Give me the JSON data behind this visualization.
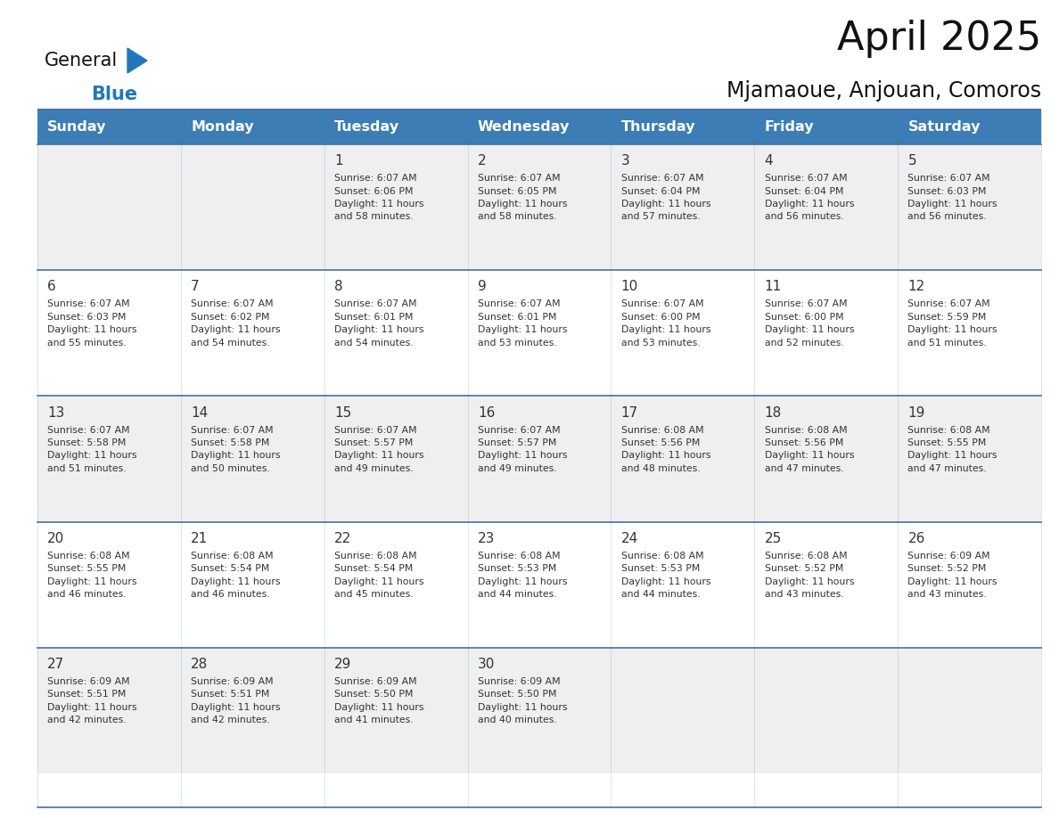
{
  "title": "April 2025",
  "subtitle": "Mjamaoue, Anjouan, Comoros",
  "header_color": "#3C7DB5",
  "header_text_color": "#FFFFFF",
  "cell_bg_row_odd": "#EFEFEF",
  "cell_bg_row_even": "#FFFFFF",
  "border_color": "#4472A8",
  "text_color": "#333333",
  "days_of_week": [
    "Sunday",
    "Monday",
    "Tuesday",
    "Wednesday",
    "Thursday",
    "Friday",
    "Saturday"
  ],
  "calendar_data": [
    [
      {
        "day": "",
        "info": ""
      },
      {
        "day": "",
        "info": ""
      },
      {
        "day": "1",
        "info": "Sunrise: 6:07 AM\nSunset: 6:06 PM\nDaylight: 11 hours\nand 58 minutes."
      },
      {
        "day": "2",
        "info": "Sunrise: 6:07 AM\nSunset: 6:05 PM\nDaylight: 11 hours\nand 58 minutes."
      },
      {
        "day": "3",
        "info": "Sunrise: 6:07 AM\nSunset: 6:04 PM\nDaylight: 11 hours\nand 57 minutes."
      },
      {
        "day": "4",
        "info": "Sunrise: 6:07 AM\nSunset: 6:04 PM\nDaylight: 11 hours\nand 56 minutes."
      },
      {
        "day": "5",
        "info": "Sunrise: 6:07 AM\nSunset: 6:03 PM\nDaylight: 11 hours\nand 56 minutes."
      }
    ],
    [
      {
        "day": "6",
        "info": "Sunrise: 6:07 AM\nSunset: 6:03 PM\nDaylight: 11 hours\nand 55 minutes."
      },
      {
        "day": "7",
        "info": "Sunrise: 6:07 AM\nSunset: 6:02 PM\nDaylight: 11 hours\nand 54 minutes."
      },
      {
        "day": "8",
        "info": "Sunrise: 6:07 AM\nSunset: 6:01 PM\nDaylight: 11 hours\nand 54 minutes."
      },
      {
        "day": "9",
        "info": "Sunrise: 6:07 AM\nSunset: 6:01 PM\nDaylight: 11 hours\nand 53 minutes."
      },
      {
        "day": "10",
        "info": "Sunrise: 6:07 AM\nSunset: 6:00 PM\nDaylight: 11 hours\nand 53 minutes."
      },
      {
        "day": "11",
        "info": "Sunrise: 6:07 AM\nSunset: 6:00 PM\nDaylight: 11 hours\nand 52 minutes."
      },
      {
        "day": "12",
        "info": "Sunrise: 6:07 AM\nSunset: 5:59 PM\nDaylight: 11 hours\nand 51 minutes."
      }
    ],
    [
      {
        "day": "13",
        "info": "Sunrise: 6:07 AM\nSunset: 5:58 PM\nDaylight: 11 hours\nand 51 minutes."
      },
      {
        "day": "14",
        "info": "Sunrise: 6:07 AM\nSunset: 5:58 PM\nDaylight: 11 hours\nand 50 minutes."
      },
      {
        "day": "15",
        "info": "Sunrise: 6:07 AM\nSunset: 5:57 PM\nDaylight: 11 hours\nand 49 minutes."
      },
      {
        "day": "16",
        "info": "Sunrise: 6:07 AM\nSunset: 5:57 PM\nDaylight: 11 hours\nand 49 minutes."
      },
      {
        "day": "17",
        "info": "Sunrise: 6:08 AM\nSunset: 5:56 PM\nDaylight: 11 hours\nand 48 minutes."
      },
      {
        "day": "18",
        "info": "Sunrise: 6:08 AM\nSunset: 5:56 PM\nDaylight: 11 hours\nand 47 minutes."
      },
      {
        "day": "19",
        "info": "Sunrise: 6:08 AM\nSunset: 5:55 PM\nDaylight: 11 hours\nand 47 minutes."
      }
    ],
    [
      {
        "day": "20",
        "info": "Sunrise: 6:08 AM\nSunset: 5:55 PM\nDaylight: 11 hours\nand 46 minutes."
      },
      {
        "day": "21",
        "info": "Sunrise: 6:08 AM\nSunset: 5:54 PM\nDaylight: 11 hours\nand 46 minutes."
      },
      {
        "day": "22",
        "info": "Sunrise: 6:08 AM\nSunset: 5:54 PM\nDaylight: 11 hours\nand 45 minutes."
      },
      {
        "day": "23",
        "info": "Sunrise: 6:08 AM\nSunset: 5:53 PM\nDaylight: 11 hours\nand 44 minutes."
      },
      {
        "day": "24",
        "info": "Sunrise: 6:08 AM\nSunset: 5:53 PM\nDaylight: 11 hours\nand 44 minutes."
      },
      {
        "day": "25",
        "info": "Sunrise: 6:08 AM\nSunset: 5:52 PM\nDaylight: 11 hours\nand 43 minutes."
      },
      {
        "day": "26",
        "info": "Sunrise: 6:09 AM\nSunset: 5:52 PM\nDaylight: 11 hours\nand 43 minutes."
      }
    ],
    [
      {
        "day": "27",
        "info": "Sunrise: 6:09 AM\nSunset: 5:51 PM\nDaylight: 11 hours\nand 42 minutes."
      },
      {
        "day": "28",
        "info": "Sunrise: 6:09 AM\nSunset: 5:51 PM\nDaylight: 11 hours\nand 42 minutes."
      },
      {
        "day": "29",
        "info": "Sunrise: 6:09 AM\nSunset: 5:50 PM\nDaylight: 11 hours\nand 41 minutes."
      },
      {
        "day": "30",
        "info": "Sunrise: 6:09 AM\nSunset: 5:50 PM\nDaylight: 11 hours\nand 40 minutes."
      },
      {
        "day": "",
        "info": ""
      },
      {
        "day": "",
        "info": ""
      },
      {
        "day": "",
        "info": ""
      }
    ]
  ],
  "logo_text_general": "General",
  "logo_text_blue": "Blue",
  "logo_color_general": "#111111",
  "logo_color_blue": "#2277BB",
  "logo_triangle_color": "#2277BB",
  "figwidth": 11.88,
  "figheight": 9.18,
  "dpi": 100
}
